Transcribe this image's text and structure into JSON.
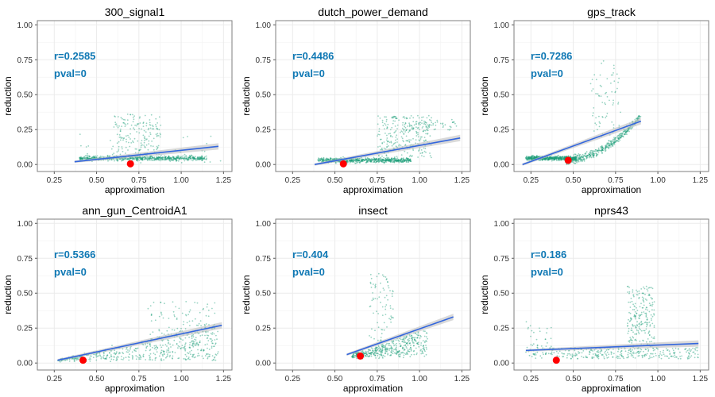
{
  "figure": {
    "xlabel": "approximation",
    "ylabel": "reduction"
  },
  "colors": {
    "points": "#1a9e77",
    "trend": "#3366dd",
    "ci": "#c0c0c0",
    "marker": "#ff0000",
    "annot": "#0f78b4",
    "grid": "#ebebeb",
    "frame": "#7f7f7f"
  },
  "chart_data": [
    {
      "type": "scatter",
      "title": "300_signal1",
      "xlabel": "approximation",
      "ylabel": "reduction",
      "xlim": [
        0.15,
        1.3
      ],
      "ylim": [
        -0.05,
        1.03
      ],
      "xticks": [
        "0.25",
        "0.50",
        "0.75",
        "1.00",
        "1.25"
      ],
      "yticks": [
        "0.00",
        "0.25",
        "0.50",
        "0.75",
        "1.00"
      ],
      "annotation": {
        "r": "r=0.2585",
        "pval": "pval=0"
      },
      "trend": {
        "x": [
          0.37,
          1.22
        ],
        "y": [
          0.02,
          0.13
        ]
      },
      "highlight": {
        "x": 0.7,
        "y": 0.005
      }
    },
    {
      "type": "scatter",
      "title": "dutch_power_demand",
      "xlabel": "approximation",
      "ylabel": "reduction",
      "xlim": [
        0.15,
        1.3
      ],
      "ylim": [
        -0.05,
        1.03
      ],
      "xticks": [
        "0.25",
        "0.50",
        "0.75",
        "1.00",
        "1.25"
      ],
      "yticks": [
        "0.00",
        "0.25",
        "0.50",
        "0.75",
        "1.00"
      ],
      "annotation": {
        "r": "r=0.4486",
        "pval": "pval=0"
      },
      "trend": {
        "x": [
          0.38,
          1.24
        ],
        "y": [
          0.0,
          0.19
        ]
      },
      "highlight": {
        "x": 0.55,
        "y": 0.005
      }
    },
    {
      "type": "scatter",
      "title": "gps_track",
      "xlabel": "approximation",
      "ylabel": "reduction",
      "xlim": [
        0.15,
        1.3
      ],
      "ylim": [
        -0.05,
        1.03
      ],
      "xticks": [
        "0.25",
        "0.50",
        "0.75",
        "1.00",
        "1.25"
      ],
      "yticks": [
        "0.00",
        "0.25",
        "0.50",
        "0.75",
        "1.00"
      ],
      "annotation": {
        "r": "r=0.7286",
        "pval": "pval=0"
      },
      "trend": {
        "x": [
          0.2,
          0.9
        ],
        "y": [
          0.0,
          0.31
        ]
      },
      "highlight": {
        "x": 0.47,
        "y": 0.03
      }
    },
    {
      "type": "scatter",
      "title": "ann_gun_CentroidA1",
      "xlabel": "approximation",
      "ylabel": "reduction",
      "xlim": [
        0.15,
        1.3
      ],
      "ylim": [
        -0.05,
        1.03
      ],
      "xticks": [
        "0.25",
        "0.50",
        "0.75",
        "1.00",
        "1.25"
      ],
      "yticks": [
        "0.00",
        "0.25",
        "0.50",
        "0.75",
        "1.00"
      ],
      "annotation": {
        "r": "r=0.5366",
        "pval": "pval=0"
      },
      "trend": {
        "x": [
          0.27,
          1.24
        ],
        "y": [
          0.02,
          0.27
        ]
      },
      "highlight": {
        "x": 0.42,
        "y": 0.02
      }
    },
    {
      "type": "scatter",
      "title": "insect",
      "xlabel": "approximation",
      "ylabel": "reduction",
      "xlim": [
        0.15,
        1.3
      ],
      "ylim": [
        -0.05,
        1.03
      ],
      "xticks": [
        "0.25",
        "0.50",
        "0.75",
        "1.00",
        "1.25"
      ],
      "yticks": [
        "0.00",
        "0.25",
        "0.50",
        "0.75",
        "1.00"
      ],
      "annotation": {
        "r": "r=0.404",
        "pval": "pval=0"
      },
      "trend": {
        "x": [
          0.57,
          1.2
        ],
        "y": [
          0.06,
          0.33
        ]
      },
      "highlight": {
        "x": 0.65,
        "y": 0.05
      }
    },
    {
      "type": "scatter",
      "title": "nprs43",
      "xlabel": "approximation",
      "ylabel": "reduction",
      "xlim": [
        0.15,
        1.3
      ],
      "ylim": [
        -0.05,
        1.03
      ],
      "xticks": [
        "0.25",
        "0.50",
        "0.75",
        "1.00",
        "1.25"
      ],
      "yticks": [
        "0.00",
        "0.25",
        "0.50",
        "0.75",
        "1.00"
      ],
      "annotation": {
        "r": "r=0.186",
        "pval": "pval=0"
      },
      "trend": {
        "x": [
          0.22,
          1.24
        ],
        "y": [
          0.09,
          0.14
        ]
      },
      "highlight": {
        "x": 0.4,
        "y": 0.02
      }
    }
  ]
}
